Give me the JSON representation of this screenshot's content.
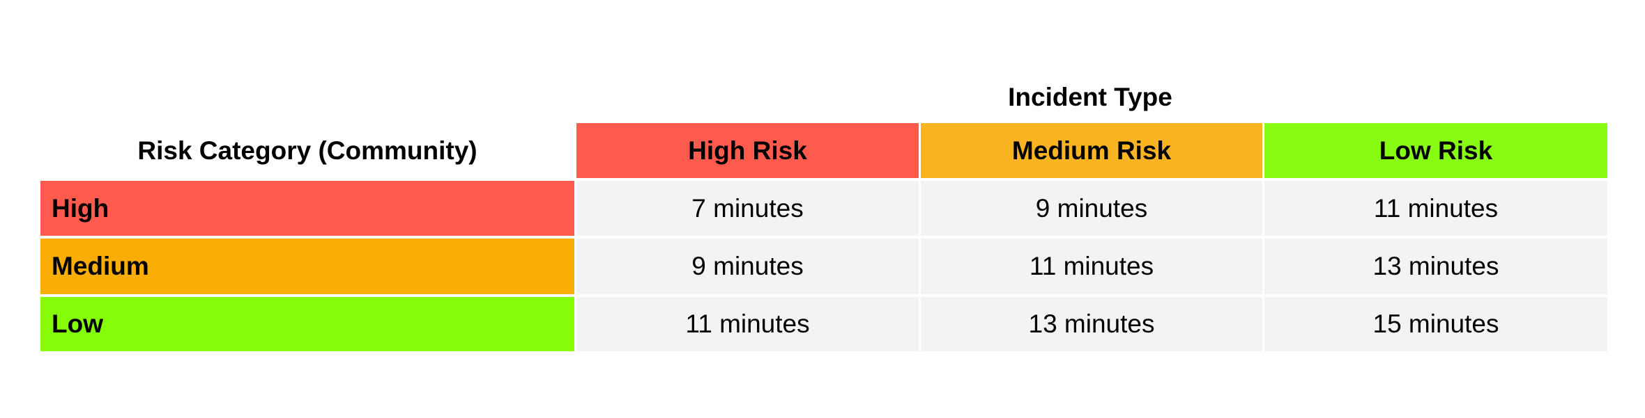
{
  "table": {
    "group_header": "Incident Type",
    "corner_label": "Risk Category (Community)",
    "columns": [
      {
        "label": "High Risk",
        "color": "#ff5a4e"
      },
      {
        "label": "Medium Risk",
        "color": "#fbb421"
      },
      {
        "label": "Low Risk",
        "color": "#87fb13"
      }
    ],
    "rows": [
      {
        "label": "High",
        "color": "#ff5a4e",
        "cells": [
          "7 minutes",
          "9 minutes",
          "11 minutes"
        ]
      },
      {
        "label": "Medium",
        "color": "#faae05",
        "cells": [
          "9 minutes",
          "11 minutes",
          "13 minutes"
        ]
      },
      {
        "label": "Low",
        "color": "#85fc08",
        "cells": [
          "11 minutes",
          "13 minutes",
          "15 minutes"
        ]
      }
    ]
  }
}
